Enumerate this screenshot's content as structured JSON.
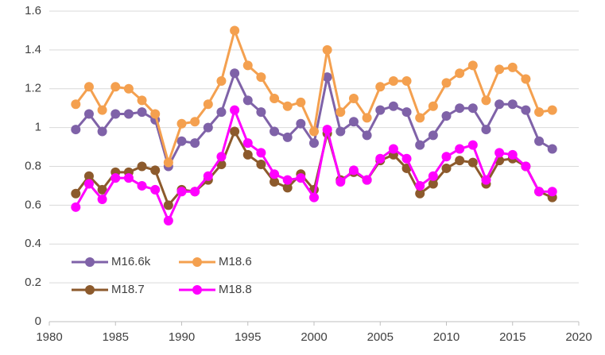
{
  "chart_data": {
    "type": "line",
    "x": [
      1982,
      1983,
      1984,
      1985,
      1986,
      1987,
      1988,
      1989,
      1990,
      1991,
      1992,
      1993,
      1994,
      1995,
      1996,
      1997,
      1998,
      1999,
      2000,
      2001,
      2002,
      2003,
      2004,
      2005,
      2006,
      2007,
      2008,
      2009,
      2010,
      2011,
      2012,
      2013,
      2014,
      2015,
      2016,
      2017,
      2018
    ],
    "series": [
      {
        "name": "M16.6k",
        "color": "#7f62a8",
        "values": [
          0.99,
          1.07,
          0.98,
          1.07,
          1.07,
          1.08,
          1.04,
          0.8,
          0.93,
          0.92,
          1.0,
          1.08,
          1.28,
          1.14,
          1.08,
          0.98,
          0.95,
          1.02,
          0.92,
          1.26,
          0.98,
          1.03,
          0.96,
          1.09,
          1.11,
          1.08,
          0.91,
          0.96,
          1.06,
          1.1,
          1.1,
          0.99,
          1.12,
          1.12,
          1.09,
          0.93,
          0.89
        ]
      },
      {
        "name": "M18.6",
        "color": "#f4a04f",
        "values": [
          1.12,
          1.21,
          1.09,
          1.21,
          1.2,
          1.14,
          1.07,
          0.82,
          1.02,
          1.03,
          1.12,
          1.24,
          1.5,
          1.32,
          1.26,
          1.15,
          1.11,
          1.13,
          0.98,
          1.4,
          1.08,
          1.15,
          1.05,
          1.21,
          1.24,
          1.24,
          1.05,
          1.11,
          1.23,
          1.28,
          1.32,
          1.14,
          1.3,
          1.31,
          1.25,
          1.08,
          1.09
        ]
      },
      {
        "name": "M18.7",
        "color": "#8c5a2c",
        "values": [
          0.66,
          0.75,
          0.68,
          0.77,
          0.77,
          0.8,
          0.78,
          0.6,
          0.68,
          0.67,
          0.73,
          0.81,
          0.98,
          0.86,
          0.81,
          0.72,
          0.69,
          0.76,
          0.68,
          0.97,
          0.73,
          0.77,
          0.73,
          0.83,
          0.86,
          0.79,
          0.66,
          0.71,
          0.79,
          0.83,
          0.82,
          0.71,
          0.83,
          0.84,
          0.8,
          0.67,
          0.64
        ]
      },
      {
        "name": "M18.8",
        "color": "#ff00ff",
        "values": [
          0.59,
          0.71,
          0.63,
          0.74,
          0.74,
          0.7,
          0.68,
          0.52,
          0.67,
          0.67,
          0.75,
          0.85,
          1.09,
          0.92,
          0.87,
          0.76,
          0.73,
          0.74,
          0.64,
          0.99,
          0.72,
          0.78,
          0.73,
          0.84,
          0.89,
          0.84,
          0.7,
          0.75,
          0.85,
          0.89,
          0.91,
          0.73,
          0.87,
          0.86,
          0.8,
          0.67,
          0.67
        ]
      }
    ],
    "xlim": [
      1980,
      2020
    ],
    "xticks": [
      1980,
      1985,
      1990,
      1995,
      2000,
      2005,
      2010,
      2015,
      2020
    ],
    "ylim": [
      0,
      1.6
    ],
    "yticks": [
      0,
      0.2,
      0.4,
      0.6,
      0.8,
      1,
      1.2,
      1.4,
      1.6
    ],
    "grid": true,
    "legend": "lower-left"
  }
}
